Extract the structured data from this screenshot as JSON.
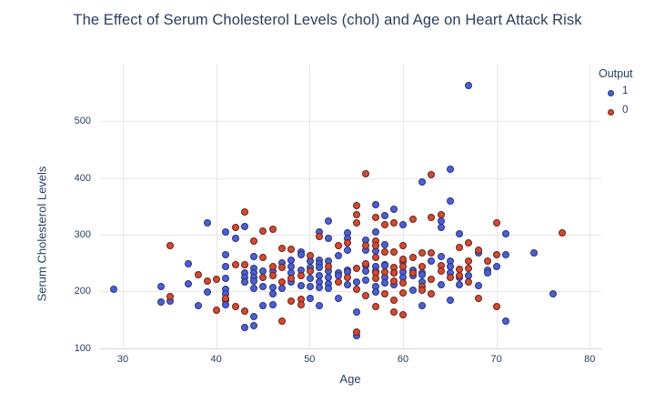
{
  "title": "The Effect of Serum Cholesterol Levels (chol) and Age on Heart Attack Risk",
  "legend": {
    "title": "Output",
    "items": [
      {
        "label": "1",
        "color": "#4d5fd0",
        "edge": "#27357e"
      },
      {
        "label": "0",
        "color": "#d04b35",
        "edge": "#6e2114"
      }
    ]
  },
  "axes": {
    "x_title": "Age",
    "y_title": "Serum Cholesterol Levels",
    "x_ticks": [
      30,
      40,
      50,
      60,
      70,
      80
    ],
    "y_ticks": [
      100,
      200,
      300,
      400,
      500
    ]
  },
  "colors": {
    "text": "#2a3f5f",
    "grid": "#e7e7e7",
    "axis_line": "#d6d6d6",
    "background": "#ffffff"
  },
  "chart_data": {
    "type": "scatter",
    "title": "The Effect of Serum Cholesterol Levels (chol) and Age on Heart Attack Risk",
    "xlabel": "Age",
    "ylabel": "Serum Cholesterol Levels",
    "xlim": [
      27.5,
      81.3
    ],
    "ylim": [
      100,
      600
    ],
    "xticks": [
      30,
      40,
      50,
      60,
      70,
      80
    ],
    "yticks": [
      100,
      200,
      300,
      400,
      500
    ],
    "grid": true,
    "legend_title": "Output",
    "legend_position": "right",
    "series": [
      {
        "name": "1",
        "color": "#4d5fd0",
        "edge": "#27357e",
        "points": [
          [
            29,
            204
          ],
          [
            34,
            210
          ],
          [
            34,
            182
          ],
          [
            35,
            183
          ],
          [
            37,
            250
          ],
          [
            37,
            215
          ],
          [
            38,
            175
          ],
          [
            39,
            321
          ],
          [
            39,
            199
          ],
          [
            41,
            306
          ],
          [
            41,
            266
          ],
          [
            41,
            245
          ],
          [
            41,
            224
          ],
          [
            41,
            205
          ],
          [
            41,
            197
          ],
          [
            41,
            186
          ],
          [
            41,
            177
          ],
          [
            42,
            294
          ],
          [
            43,
            315
          ],
          [
            43,
            234
          ],
          [
            43,
            226
          ],
          [
            43,
            218
          ],
          [
            43,
            137
          ],
          [
            44,
            263
          ],
          [
            44,
            241
          ],
          [
            44,
            234
          ],
          [
            44,
            226
          ],
          [
            44,
            219
          ],
          [
            44,
            207
          ],
          [
            44,
            156
          ],
          [
            44,
            141
          ],
          [
            45,
            236
          ],
          [
            45,
            210
          ],
          [
            45,
            175
          ],
          [
            46,
            237
          ],
          [
            46,
            208
          ],
          [
            46,
            197
          ],
          [
            46,
            177
          ],
          [
            47,
            251
          ],
          [
            47,
            207
          ],
          [
            48,
            256
          ],
          [
            48,
            245
          ],
          [
            48,
            234
          ],
          [
            48,
            217
          ],
          [
            49,
            271
          ],
          [
            49,
            266
          ],
          [
            49,
            238
          ],
          [
            49,
            211
          ],
          [
            50,
            254
          ],
          [
            50,
            243
          ],
          [
            50,
            224
          ],
          [
            50,
            210
          ],
          [
            50,
            188
          ],
          [
            51,
            305
          ],
          [
            51,
            256
          ],
          [
            51,
            250
          ],
          [
            51,
            243
          ],
          [
            51,
            228
          ],
          [
            51,
            218
          ],
          [
            51,
            208
          ],
          [
            51,
            175
          ],
          [
            52,
            325
          ],
          [
            52,
            294
          ],
          [
            52,
            255
          ],
          [
            52,
            236
          ],
          [
            52,
            226
          ],
          [
            52,
            215
          ],
          [
            52,
            206
          ],
          [
            53,
            264
          ],
          [
            53,
            234
          ],
          [
            53,
            229
          ],
          [
            53,
            188
          ],
          [
            54,
            304
          ],
          [
            54,
            294
          ],
          [
            54,
            273
          ],
          [
            54,
            239
          ],
          [
            54,
            235
          ],
          [
            54,
            212
          ],
          [
            55,
            217
          ],
          [
            55,
            164
          ],
          [
            55,
            122
          ],
          [
            56,
            292
          ],
          [
            56,
            273
          ],
          [
            56,
            246
          ],
          [
            56,
            236
          ],
          [
            56,
            221
          ],
          [
            57,
            354
          ],
          [
            57,
            306
          ],
          [
            57,
            272
          ],
          [
            57,
            245
          ],
          [
            57,
            236
          ],
          [
            57,
            210
          ],
          [
            57,
            199
          ],
          [
            58,
            335
          ],
          [
            58,
            283
          ],
          [
            58,
            248
          ],
          [
            58,
            246
          ],
          [
            58,
            225
          ],
          [
            58,
            216
          ],
          [
            59,
            345
          ],
          [
            59,
            234
          ],
          [
            59,
            212
          ],
          [
            60,
            318
          ],
          [
            60,
            253
          ],
          [
            60,
            235
          ],
          [
            60,
            226
          ],
          [
            61,
            239
          ],
          [
            61,
            228
          ],
          [
            61,
            203
          ],
          [
            62,
            394
          ],
          [
            62,
            234
          ],
          [
            62,
            231
          ],
          [
            62,
            218
          ],
          [
            62,
            175
          ],
          [
            63,
            254
          ],
          [
            64,
            325
          ],
          [
            64,
            313
          ],
          [
            64,
            263
          ],
          [
            64,
            213
          ],
          [
            65,
            417
          ],
          [
            65,
            360
          ],
          [
            65,
            254
          ],
          [
            65,
            245
          ],
          [
            65,
            233
          ],
          [
            65,
            185
          ],
          [
            66,
            303
          ],
          [
            66,
            226
          ],
          [
            66,
            212
          ],
          [
            67,
            564
          ],
          [
            67,
            228
          ],
          [
            68,
            268
          ],
          [
            68,
            211
          ],
          [
            69,
            239
          ],
          [
            69,
            234
          ],
          [
            70,
            245
          ],
          [
            71,
            302
          ],
          [
            71,
            265
          ],
          [
            71,
            149
          ],
          [
            74,
            269
          ],
          [
            76,
            197
          ]
        ]
      },
      {
        "name": "0",
        "color": "#d04b35",
        "edge": "#6e2114",
        "points": [
          [
            35,
            282
          ],
          [
            35,
            192
          ],
          [
            38,
            231
          ],
          [
            39,
            219
          ],
          [
            40,
            223
          ],
          [
            40,
            167
          ],
          [
            41,
            188
          ],
          [
            42,
            313
          ],
          [
            42,
            248
          ],
          [
            42,
            174
          ],
          [
            43,
            341
          ],
          [
            43,
            248
          ],
          [
            43,
            166
          ],
          [
            44,
            290
          ],
          [
            45,
            308
          ],
          [
            45,
            260
          ],
          [
            45,
            226
          ],
          [
            46,
            311
          ],
          [
            46,
            244
          ],
          [
            46,
            229
          ],
          [
            47,
            276
          ],
          [
            47,
            243
          ],
          [
            47,
            218
          ],
          [
            47,
            149
          ],
          [
            48,
            275
          ],
          [
            48,
            224
          ],
          [
            48,
            184
          ],
          [
            49,
            229
          ],
          [
            49,
            187
          ],
          [
            49,
            178
          ],
          [
            50,
            264
          ],
          [
            50,
            236
          ],
          [
            51,
            298
          ],
          [
            52,
            245
          ],
          [
            53,
            282
          ],
          [
            53,
            218
          ],
          [
            54,
            286
          ],
          [
            54,
            225
          ],
          [
            55,
            352
          ],
          [
            55,
            336
          ],
          [
            55,
            321
          ],
          [
            55,
            242
          ],
          [
            55,
            205
          ],
          [
            55,
            129
          ],
          [
            56,
            409
          ],
          [
            56,
            281
          ],
          [
            56,
            249
          ],
          [
            56,
            193
          ],
          [
            57,
            332
          ],
          [
            57,
            290
          ],
          [
            57,
            281
          ],
          [
            57,
            261
          ],
          [
            57,
            233
          ],
          [
            57,
            224
          ],
          [
            57,
            174
          ],
          [
            58,
            319
          ],
          [
            58,
            270
          ],
          [
            58,
            235
          ],
          [
            58,
            197
          ],
          [
            59,
            321
          ],
          [
            59,
            270
          ],
          [
            59,
            243
          ],
          [
            59,
            233
          ],
          [
            59,
            219
          ],
          [
            59,
            185
          ],
          [
            59,
            164
          ],
          [
            60,
            282
          ],
          [
            60,
            258
          ],
          [
            60,
            244
          ],
          [
            60,
            216
          ],
          [
            60,
            198
          ],
          [
            60,
            160
          ],
          [
            61,
            328
          ],
          [
            61,
            260
          ],
          [
            61,
            234
          ],
          [
            62,
            268
          ],
          [
            62,
            244
          ],
          [
            62,
            209
          ],
          [
            62,
            203
          ],
          [
            63,
            407
          ],
          [
            63,
            331
          ],
          [
            63,
            269
          ],
          [
            63,
            223
          ],
          [
            63,
            197
          ],
          [
            64,
            336
          ],
          [
            64,
            246
          ],
          [
            64,
            236
          ],
          [
            65,
            225
          ],
          [
            66,
            278
          ],
          [
            66,
            240
          ],
          [
            66,
            228
          ],
          [
            67,
            286
          ],
          [
            67,
            254
          ],
          [
            67,
            242
          ],
          [
            67,
            218
          ],
          [
            68,
            274
          ],
          [
            68,
            188
          ],
          [
            69,
            254
          ],
          [
            70,
            322
          ],
          [
            70,
            266
          ],
          [
            70,
            174
          ],
          [
            77,
            304
          ]
        ]
      }
    ]
  }
}
